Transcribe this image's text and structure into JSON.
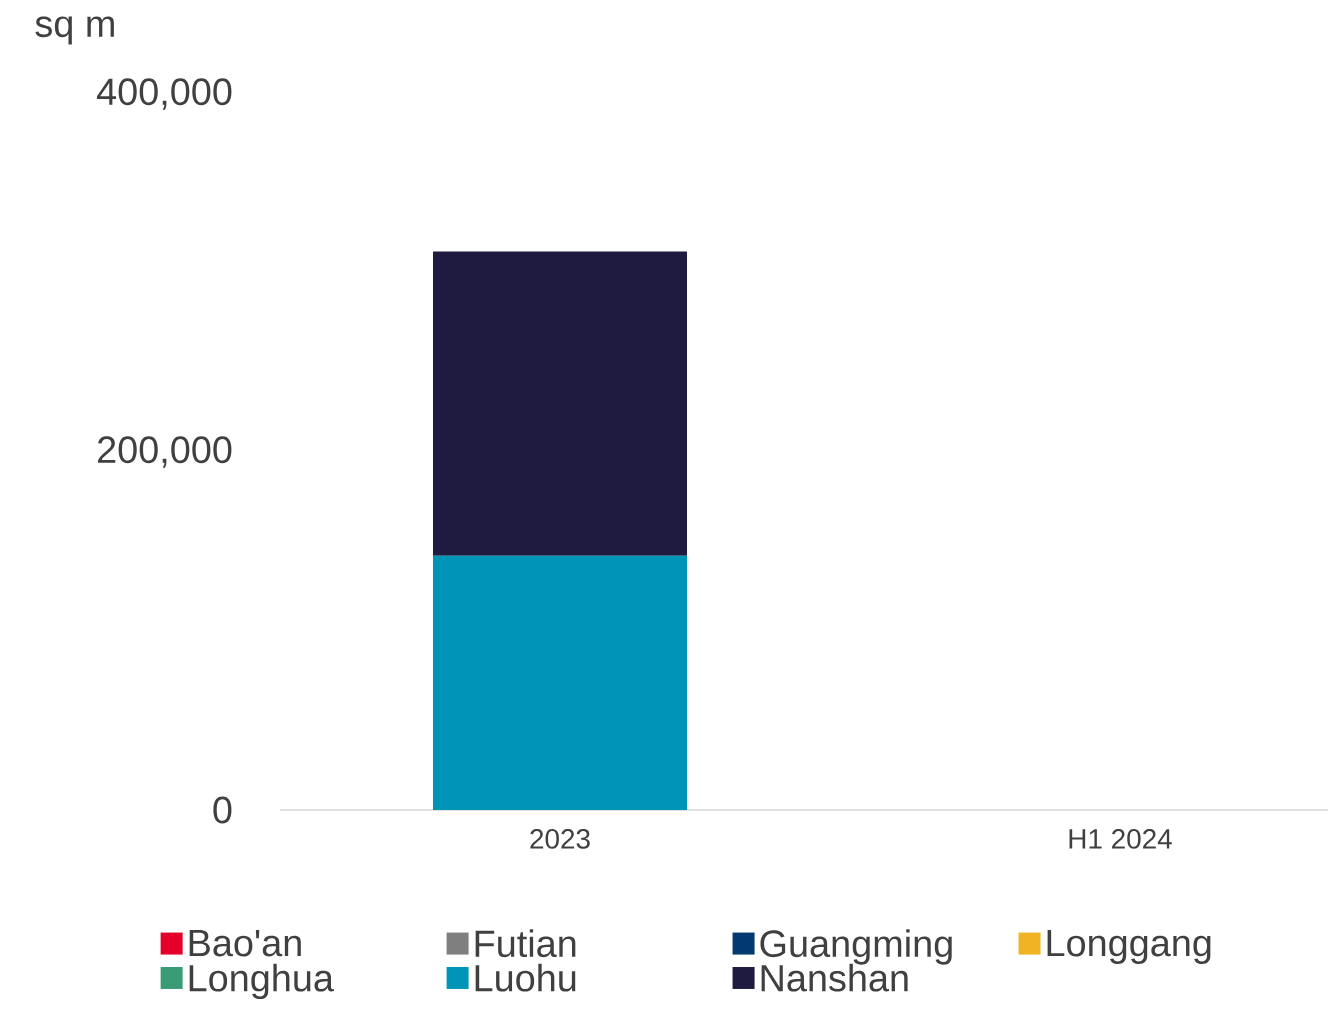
{
  "chart_data": {
    "type": "bar",
    "stacked": true,
    "ylabel": "sq m",
    "categories": [
      "2023",
      "H1 2024"
    ],
    "ylim": [
      0,
      400000
    ],
    "yticks": [
      {
        "value": 0,
        "label": "0"
      },
      {
        "value": 200000,
        "label": "200,000"
      },
      {
        "value": 400000,
        "label": "400,000"
      }
    ],
    "legend": "bottom",
    "grid": false,
    "series": [
      {
        "name": "Bao'an",
        "color": "#e4002b",
        "values": [
          0,
          0
        ]
      },
      {
        "name": "Futian",
        "color": "#7f7f7f",
        "values": [
          0,
          0
        ]
      },
      {
        "name": "Guangming",
        "color": "#003a70",
        "values": [
          0,
          0
        ]
      },
      {
        "name": "Longgang",
        "color": "#f0b323",
        "values": [
          0,
          0
        ]
      },
      {
        "name": "Longhua",
        "color": "#3a9b77",
        "values": [
          0,
          0
        ]
      },
      {
        "name": "Luohu",
        "color": "#0095b6",
        "values": [
          142000,
          0
        ]
      },
      {
        "name": "Nanshan",
        "color": "#1e1a40",
        "values": [
          170000,
          0
        ]
      }
    ]
  }
}
